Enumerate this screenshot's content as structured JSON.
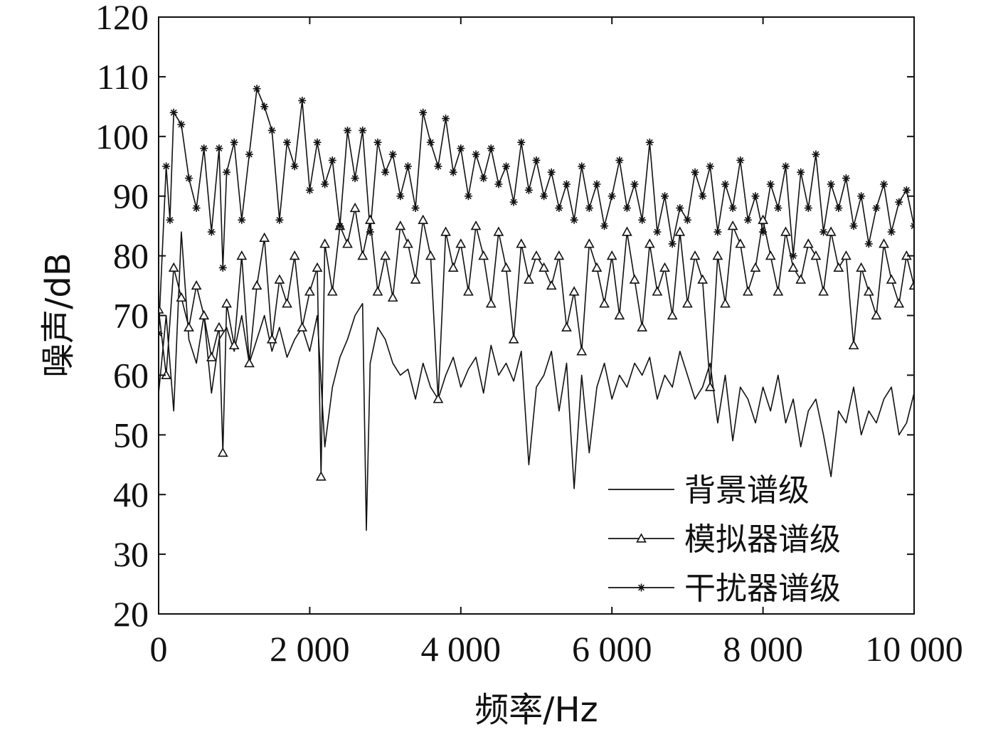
{
  "chart_data": {
    "type": "line",
    "xlabel": "频率/Hz",
    "ylabel": "噪声/dB",
    "xlim": [
      0,
      10000
    ],
    "ylim": [
      20,
      120
    ],
    "xticks": [
      0,
      2000,
      4000,
      6000,
      8000,
      10000
    ],
    "xtick_labels": [
      "0",
      "2 000",
      "4 000",
      "6 000",
      "8 000",
      "10 000"
    ],
    "yticks": [
      20,
      30,
      40,
      50,
      60,
      70,
      80,
      90,
      100,
      110,
      120
    ],
    "ytick_labels": [
      "20",
      "30",
      "40",
      "50",
      "60",
      "70",
      "80",
      "90",
      "100",
      "110",
      "120"
    ],
    "grid": false,
    "legend_position": "bottom-right",
    "series": [
      {
        "name": "背景谱级",
        "marker": "none",
        "x": [
          0,
          100,
          200,
          300,
          400,
          500,
          600,
          700,
          800,
          900,
          1000,
          1100,
          1200,
          1300,
          1400,
          1500,
          1600,
          1700,
          1800,
          1900,
          2000,
          2100,
          2200,
          2300,
          2400,
          2500,
          2600,
          2700,
          2750,
          2800,
          2900,
          3000,
          3100,
          3200,
          3300,
          3400,
          3500,
          3600,
          3700,
          3800,
          3900,
          4000,
          4100,
          4200,
          4300,
          4400,
          4500,
          4600,
          4700,
          4800,
          4900,
          5000,
          5100,
          5200,
          5300,
          5400,
          5500,
          5600,
          5700,
          5800,
          5900,
          6000,
          6100,
          6200,
          6300,
          6400,
          6500,
          6600,
          6700,
          6800,
          6900,
          7000,
          7100,
          7200,
          7300,
          7400,
          7500,
          7600,
          7700,
          7800,
          7900,
          8000,
          8100,
          8200,
          8300,
          8400,
          8500,
          8600,
          8700,
          8800,
          8900,
          9000,
          9100,
          9200,
          9300,
          9400,
          9500,
          9600,
          9700,
          9800,
          9900,
          10000
        ],
        "y": [
          57,
          70,
          54,
          84,
          66,
          62,
          70,
          57,
          66,
          68,
          64,
          70,
          62,
          66,
          70,
          64,
          68,
          63,
          66,
          68,
          64,
          70,
          48,
          58,
          63,
          66,
          70,
          72,
          34,
          62,
          68,
          66,
          62,
          60,
          61,
          56,
          62,
          58,
          56,
          60,
          63,
          58,
          61,
          63,
          57,
          65,
          60,
          62,
          59,
          64,
          45,
          58,
          60,
          64,
          54,
          62,
          41,
          60,
          47,
          58,
          62,
          56,
          60,
          58,
          62,
          60,
          63,
          56,
          60,
          58,
          64,
          60,
          56,
          58,
          62,
          52,
          60,
          49,
          58,
          56,
          52,
          58,
          54,
          60,
          52,
          56,
          48,
          54,
          56,
          50,
          43,
          54,
          52,
          58,
          50,
          54,
          52,
          56,
          58,
          50,
          52,
          57
        ]
      },
      {
        "name": "模拟器谱级",
        "marker": "triangle",
        "x": [
          0,
          100,
          200,
          300,
          400,
          500,
          600,
          700,
          800,
          850,
          900,
          1000,
          1100,
          1200,
          1300,
          1400,
          1500,
          1600,
          1700,
          1800,
          1900,
          2000,
          2100,
          2150,
          2200,
          2300,
          2400,
          2500,
          2600,
          2700,
          2800,
          2900,
          3000,
          3100,
          3200,
          3300,
          3400,
          3500,
          3600,
          3700,
          3800,
          3900,
          4000,
          4100,
          4200,
          4300,
          4400,
          4500,
          4600,
          4700,
          4800,
          4900,
          5000,
          5100,
          5200,
          5300,
          5400,
          5500,
          5600,
          5700,
          5800,
          5900,
          6000,
          6100,
          6200,
          6300,
          6400,
          6500,
          6600,
          6700,
          6800,
          6900,
          7000,
          7100,
          7200,
          7300,
          7400,
          7500,
          7600,
          7700,
          7800,
          7900,
          8000,
          8100,
          8200,
          8300,
          8400,
          8500,
          8600,
          8700,
          8800,
          8900,
          9000,
          9100,
          9200,
          9300,
          9400,
          9500,
          9600,
          9700,
          9800,
          9900,
          10000
        ],
        "y": [
          71,
          60,
          78,
          73,
          68,
          75,
          70,
          63,
          68,
          47,
          72,
          65,
          80,
          62,
          75,
          83,
          66,
          76,
          72,
          80,
          68,
          74,
          78,
          43,
          82,
          74,
          85,
          82,
          88,
          80,
          86,
          74,
          80,
          73,
          85,
          82,
          76,
          86,
          80,
          56,
          84,
          78,
          82,
          74,
          85,
          80,
          72,
          84,
          78,
          66,
          82,
          76,
          80,
          78,
          75,
          80,
          68,
          74,
          64,
          82,
          78,
          72,
          80,
          70,
          84,
          76,
          68,
          82,
          74,
          78,
          70,
          84,
          72,
          80,
          76,
          58,
          80,
          72,
          85,
          82,
          74,
          78,
          86,
          80,
          74,
          84,
          78,
          76,
          82,
          80,
          74,
          84,
          78,
          80,
          65,
          78,
          74,
          70,
          82,
          76,
          72,
          80,
          75
        ]
      },
      {
        "name": "干扰器谱级",
        "marker": "star",
        "x": [
          0,
          100,
          150,
          200,
          300,
          400,
          500,
          600,
          700,
          800,
          850,
          900,
          1000,
          1100,
          1200,
          1300,
          1400,
          1500,
          1600,
          1700,
          1800,
          1900,
          2000,
          2100,
          2200,
          2300,
          2400,
          2500,
          2600,
          2700,
          2800,
          2900,
          3000,
          3100,
          3200,
          3300,
          3400,
          3500,
          3600,
          3700,
          3800,
          3900,
          4000,
          4100,
          4200,
          4300,
          4400,
          4500,
          4600,
          4700,
          4800,
          4900,
          5000,
          5100,
          5200,
          5300,
          5400,
          5500,
          5600,
          5700,
          5800,
          5900,
          6000,
          6100,
          6200,
          6300,
          6400,
          6500,
          6600,
          6700,
          6800,
          6900,
          7000,
          7100,
          7200,
          7300,
          7400,
          7500,
          7600,
          7700,
          7800,
          7900,
          8000,
          8100,
          8200,
          8300,
          8400,
          8500,
          8600,
          8700,
          8800,
          8900,
          9000,
          9100,
          9200,
          9300,
          9400,
          9500,
          9600,
          9700,
          9800,
          9900,
          10000
        ],
        "y": [
          67,
          95,
          86,
          104,
          102,
          93,
          88,
          98,
          84,
          98,
          78,
          94,
          99,
          86,
          97,
          108,
          105,
          101,
          86,
          99,
          95,
          106,
          91,
          99,
          92,
          96,
          85,
          101,
          93,
          101,
          84,
          99,
          94,
          97,
          90,
          95,
          88,
          104,
          99,
          95,
          103,
          94,
          98,
          90,
          97,
          93,
          98,
          92,
          95,
          89,
          99,
          91,
          96,
          90,
          94,
          88,
          92,
          86,
          95,
          88,
          92,
          85,
          90,
          96,
          88,
          92,
          86,
          99,
          84,
          90,
          82,
          88,
          86,
          94,
          90,
          95,
          84,
          92,
          88,
          96,
          86,
          90,
          84,
          92,
          88,
          95,
          80,
          94,
          88,
          97,
          84,
          92,
          88,
          93,
          85,
          90,
          82,
          88,
          92,
          84,
          89,
          91,
          85
        ]
      }
    ]
  }
}
